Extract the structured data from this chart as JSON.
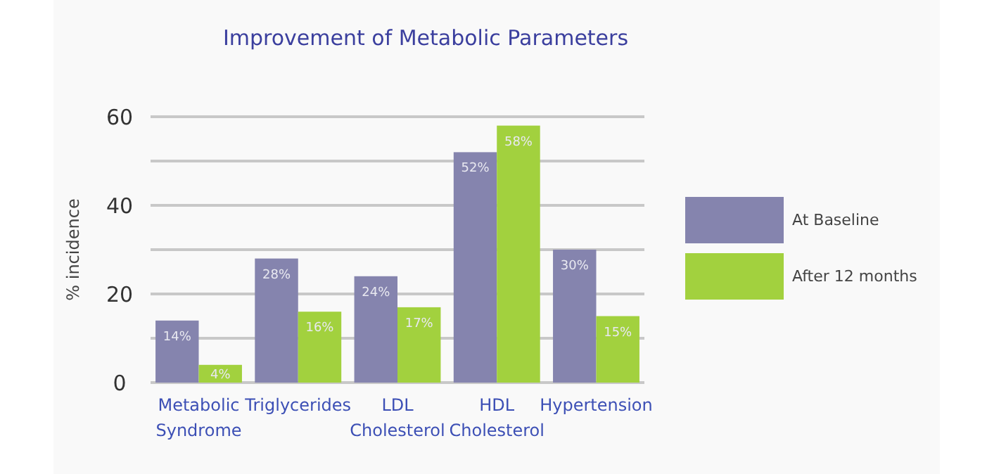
{
  "chart_data": {
    "type": "bar",
    "title": "Improvement of Metabolic Parameters",
    "ylabel": "% incidence",
    "categories": [
      "Metabolic Syndrome",
      "Triglycerides",
      "LDL Cholesterol",
      "HDL Cholesterol",
      "Hypertension"
    ],
    "series": [
      {
        "name": "At Baseline",
        "color": "#8584ae",
        "values": [
          14,
          28,
          24,
          52,
          30
        ],
        "value_labels": [
          "14%",
          "28%",
          "24%",
          "52%",
          "30%"
        ]
      },
      {
        "name": "After 12 months",
        "color": "#a2d13e",
        "values": [
          4,
          16,
          17,
          58,
          15
        ],
        "value_labels": [
          "4%",
          "16%",
          "17%",
          "58%",
          "15%"
        ]
      }
    ],
    "ylim": [
      0,
      60
    ],
    "yticks": [
      0,
      {
        "value": 10,
        "label": null
      },
      20,
      {
        "value": 30,
        "label": null
      },
      40,
      {
        "value": 50,
        "label": null
      },
      60
    ],
    "grid": "y",
    "legend": "right"
  }
}
